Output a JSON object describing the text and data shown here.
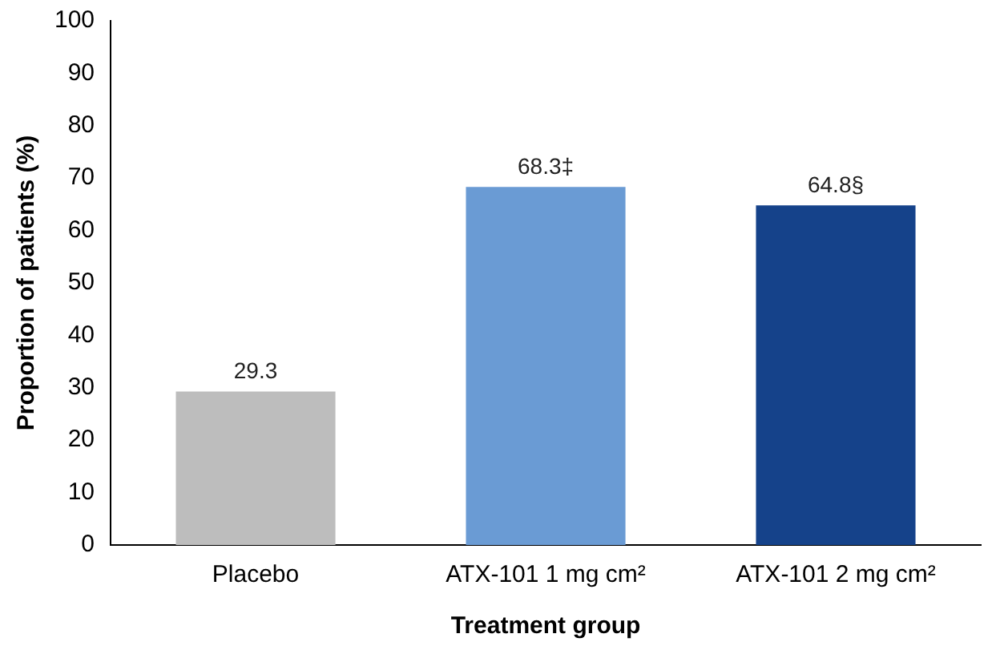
{
  "chart_data": {
    "type": "bar",
    "xlabel": "Treatment group",
    "ylabel": "Proportion of patients (%)",
    "categories": [
      "Placebo",
      "ATX-101 1 mg cm²",
      "ATX-101 2 mg cm²"
    ],
    "values": [
      29.3,
      68.3,
      64.8
    ],
    "colors": [
      "#bdbdbd",
      "#6a9bd4",
      "#15428a"
    ],
    "value_labels": [
      "29.3",
      "68.3‡",
      "64.8§"
    ],
    "ylim": [
      0,
      100
    ],
    "yticks": [
      0,
      10,
      20,
      30,
      40,
      50,
      60,
      70,
      80,
      90,
      100
    ],
    "grid": false,
    "legend": false
  }
}
